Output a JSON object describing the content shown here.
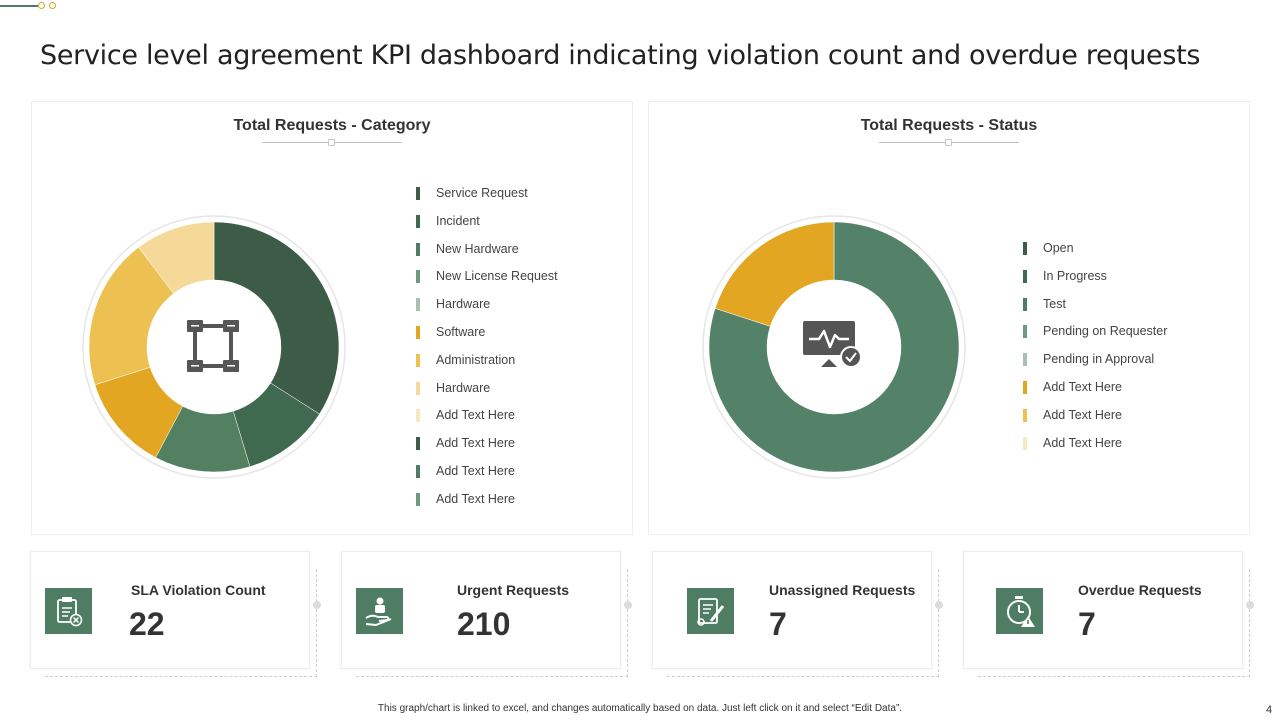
{
  "title": "Service level agreement KPI dashboard indicating violation count and overdue requests",
  "colors": {
    "green_dark": "#3c5c48",
    "green": "#4e7d63",
    "green_mid": "#5a8a6e",
    "green_light": "#6f9a80",
    "green_pale": "#a7c1b1",
    "gold": "#e2a622",
    "gold_light": "#edc052",
    "gold_pale": "#f4d999",
    "cream": "#f8e8c2"
  },
  "category_panel": {
    "title": "Total Requests - Category",
    "center_icon": "network-nodes-icon",
    "legend": [
      {
        "label": "Service Request",
        "color": "#3c5c48"
      },
      {
        "label": "Incident",
        "color": "#3f6a4f"
      },
      {
        "label": "New Hardware",
        "color": "#4e7d63"
      },
      {
        "label": "New License Request",
        "color": "#6f9a80"
      },
      {
        "label": "Hardware",
        "color": "#a7c1b1"
      },
      {
        "label": "Software",
        "color": "#e2a622"
      },
      {
        "label": "Administration",
        "color": "#edc052"
      },
      {
        "label": "Hardware",
        "color": "#f4d999"
      },
      {
        "label": "Add Text Here",
        "color": "#f8e8c2"
      },
      {
        "label": "Add Text Here",
        "color": "#3c5c48"
      },
      {
        "label": "Add Text Here",
        "color": "#4e7d63"
      },
      {
        "label": "Add Text Here",
        "color": "#6f9a80"
      }
    ]
  },
  "status_panel": {
    "title": "Total Requests - Status",
    "center_icon": "monitor-check-icon",
    "legend": [
      {
        "label": "Open",
        "color": "#3c5c48"
      },
      {
        "label": "In Progress",
        "color": "#3f6a4f"
      },
      {
        "label": "Test",
        "color": "#4e7d63"
      },
      {
        "label": "Pending on Requester",
        "color": "#6f9a80"
      },
      {
        "label": "Pending in Approval",
        "color": "#a7c1b1"
      },
      {
        "label": "Add Text Here",
        "color": "#e2a622"
      },
      {
        "label": "Add Text Here",
        "color": "#edc052"
      },
      {
        "label": "Add Text Here",
        "color": "#f8e8c2"
      }
    ]
  },
  "chart_data": [
    {
      "type": "pie",
      "title": "Total Requests - Category",
      "donut": true,
      "slices": [
        {
          "color": "#3c5c48",
          "value": 33
        },
        {
          "color": "#3f6a4f",
          "value": 11
        },
        {
          "color": "#528060",
          "value": 12
        },
        {
          "color": "#e2a622",
          "value": 12
        },
        {
          "color": "#edc052",
          "value": 19
        },
        {
          "color": "#f4d999",
          "value": 10
        }
      ]
    },
    {
      "type": "pie",
      "title": "Total Requests - Status",
      "donut": true,
      "slices": [
        {
          "color": "#538268",
          "value": 80
        },
        {
          "color": "#e2a622",
          "value": 20
        }
      ]
    }
  ],
  "kpis": [
    {
      "label": "SLA Violation Count",
      "value": "22",
      "icon": "contract-cancel-icon"
    },
    {
      "label": "Urgent Requests",
      "value": "210",
      "icon": "hand-support-icon"
    },
    {
      "label": "Unassigned  Requests",
      "value": "7",
      "icon": "document-edit-icon"
    },
    {
      "label": "Overdue Requests",
      "value": "7",
      "icon": "stopwatch-warning-icon"
    }
  ],
  "footnote": "This graph/chart is linked to excel, and changes automatically based on data. Just left click on it and select “Edit Data”.",
  "page_number": "4"
}
